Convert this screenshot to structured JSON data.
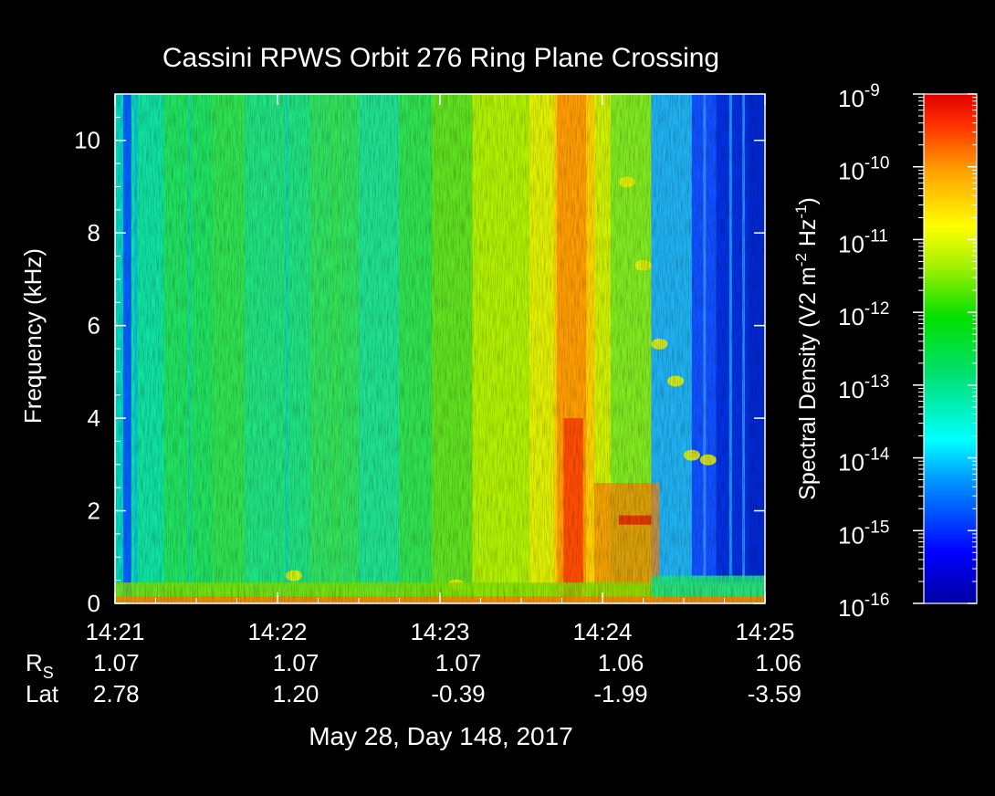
{
  "chart_data": {
    "type": "heatmap",
    "title": "Cassini RPWS Orbit 276 Ring Plane Crossing",
    "ylabel": "Frequency (kHz)",
    "xlabel": "May 28, Day 148, 2017",
    "x_ticks": [
      "14:21",
      "14:22",
      "14:23",
      "14:24",
      "14:25"
    ],
    "xlim": [
      0,
      4
    ],
    "ylim": [
      0,
      11
    ],
    "y_ticks": [
      0,
      2,
      4,
      6,
      8,
      10
    ],
    "ephemeris": [
      {
        "label": "R",
        "sub": "S",
        "values": [
          "1.07",
          "1.07",
          "1.07",
          "1.06",
          "1.06"
        ]
      },
      {
        "label": "Lat",
        "sub": "",
        "values": [
          "2.78",
          "1.20",
          "-0.39",
          "-1.99",
          "-3.59"
        ]
      }
    ],
    "colorbar": {
      "label_main": "Spectral Density (V2 m",
      "label_sup1": "-2",
      "label_mid": " Hz",
      "label_sup2": "-1",
      "label_end": ")",
      "scale": "log",
      "range": [
        -16,
        -9
      ],
      "tick_base": "10",
      "tick_exponents": [
        "-9",
        "-10",
        "-11",
        "-12",
        "-13",
        "-14",
        "-15",
        "-16"
      ],
      "colors": [
        "#0000a0",
        "#0000ff",
        "#00d0ff",
        "#00ffcc",
        "#00e040",
        "#40e000",
        "#ffff00",
        "#ffa000",
        "#ff3000",
        "#e00000"
      ]
    },
    "features": [
      {
        "name": "broadband emission column",
        "time_min": [
          2.7,
          2.95
        ],
        "freq_khz": [
          0,
          11
        ],
        "log_density": -10.5
      },
      {
        "name": "low frequency band",
        "time_min": [
          0,
          4
        ],
        "freq_khz": [
          0,
          0.4
        ],
        "log_density": -12.0
      },
      {
        "name": "background noise after crossing",
        "time_min": [
          3.3,
          4
        ],
        "freq_khz": [
          0.5,
          11
        ],
        "log_density": -15.3
      }
    ]
  }
}
